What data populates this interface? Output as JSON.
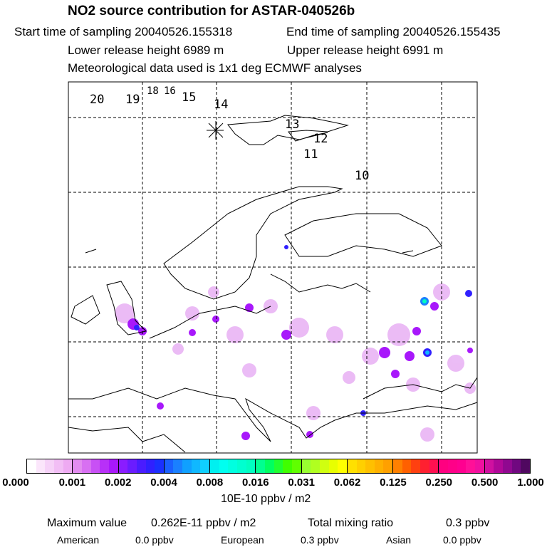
{
  "title": "NO2 source contribution for ASTAR-040526b",
  "start": "Start time of sampling 20040526.155318",
  "end": "End time of sampling 20040526.155435",
  "lower": "Lower release height 6989 m",
  "upper": "Upper release height 6991 m",
  "met": "Meteorological data used is 1x1 deg ECMWF analyses",
  "trajectory_labels": [
    "20",
    "19",
    "18",
    "16",
    "15",
    "14",
    "13",
    "12",
    "11",
    "10"
  ],
  "colorbar": {
    "labels": [
      "0.000",
      "0.001",
      "0.002",
      "0.004",
      "0.008",
      "0.016",
      "0.031",
      "0.062",
      "0.125",
      "0.250",
      "0.500",
      "1.000"
    ],
    "colors": [
      [
        "#ffffff",
        "#fbe6fb",
        "#f6d2f8",
        "#f2bef5",
        "#eeaaf2"
      ],
      [
        "#e38cf0",
        "#d870f2",
        "#c850f5",
        "#b830f8",
        "#a818fb"
      ],
      [
        "#8a1cff",
        "#6a1cff",
        "#4a1cff",
        "#3020ff",
        "#1a30ff"
      ],
      [
        "#1a60ff",
        "#1a80ff",
        "#10a0ff",
        "#10b8ff",
        "#10d0ff"
      ],
      [
        "#00f0f0",
        "#00fff0",
        "#00ffe0",
        "#00ffd0",
        "#00ffc0"
      ],
      [
        "#00ff90",
        "#00ff60",
        "#20ff30",
        "#40ff00",
        "#60ff00"
      ],
      [
        "#98ff30",
        "#b0ff20",
        "#d0ff10",
        "#e8ff00",
        "#ffff00"
      ],
      [
        "#ffe000",
        "#ffd000",
        "#ffc000",
        "#ffb000",
        "#ffa000"
      ],
      [
        "#ff8000",
        "#ff6000",
        "#ff4010",
        "#ff2030",
        "#ff1050"
      ],
      [
        "#ff0080",
        "#ff0088",
        "#ff0090",
        "#ff1098",
        "#f010a0"
      ],
      [
        "#d010a0",
        "#b00898",
        "#900890",
        "#700880",
        "#500860"
      ]
    ],
    "unit": "10E-10 ppbv / m2"
  },
  "stats": {
    "max_label": "Maximum value",
    "max_value": "0.262E-11 ppbv / m2",
    "total_label": "Total mixing ratio",
    "total_value": "0.3 ppbv",
    "american_label": "American",
    "american_value": "0.0 ppbv",
    "european_label": "European",
    "european_value": "0.3 ppbv",
    "asian_label": "Asian",
    "asian_value": "0.0 ppbv"
  }
}
